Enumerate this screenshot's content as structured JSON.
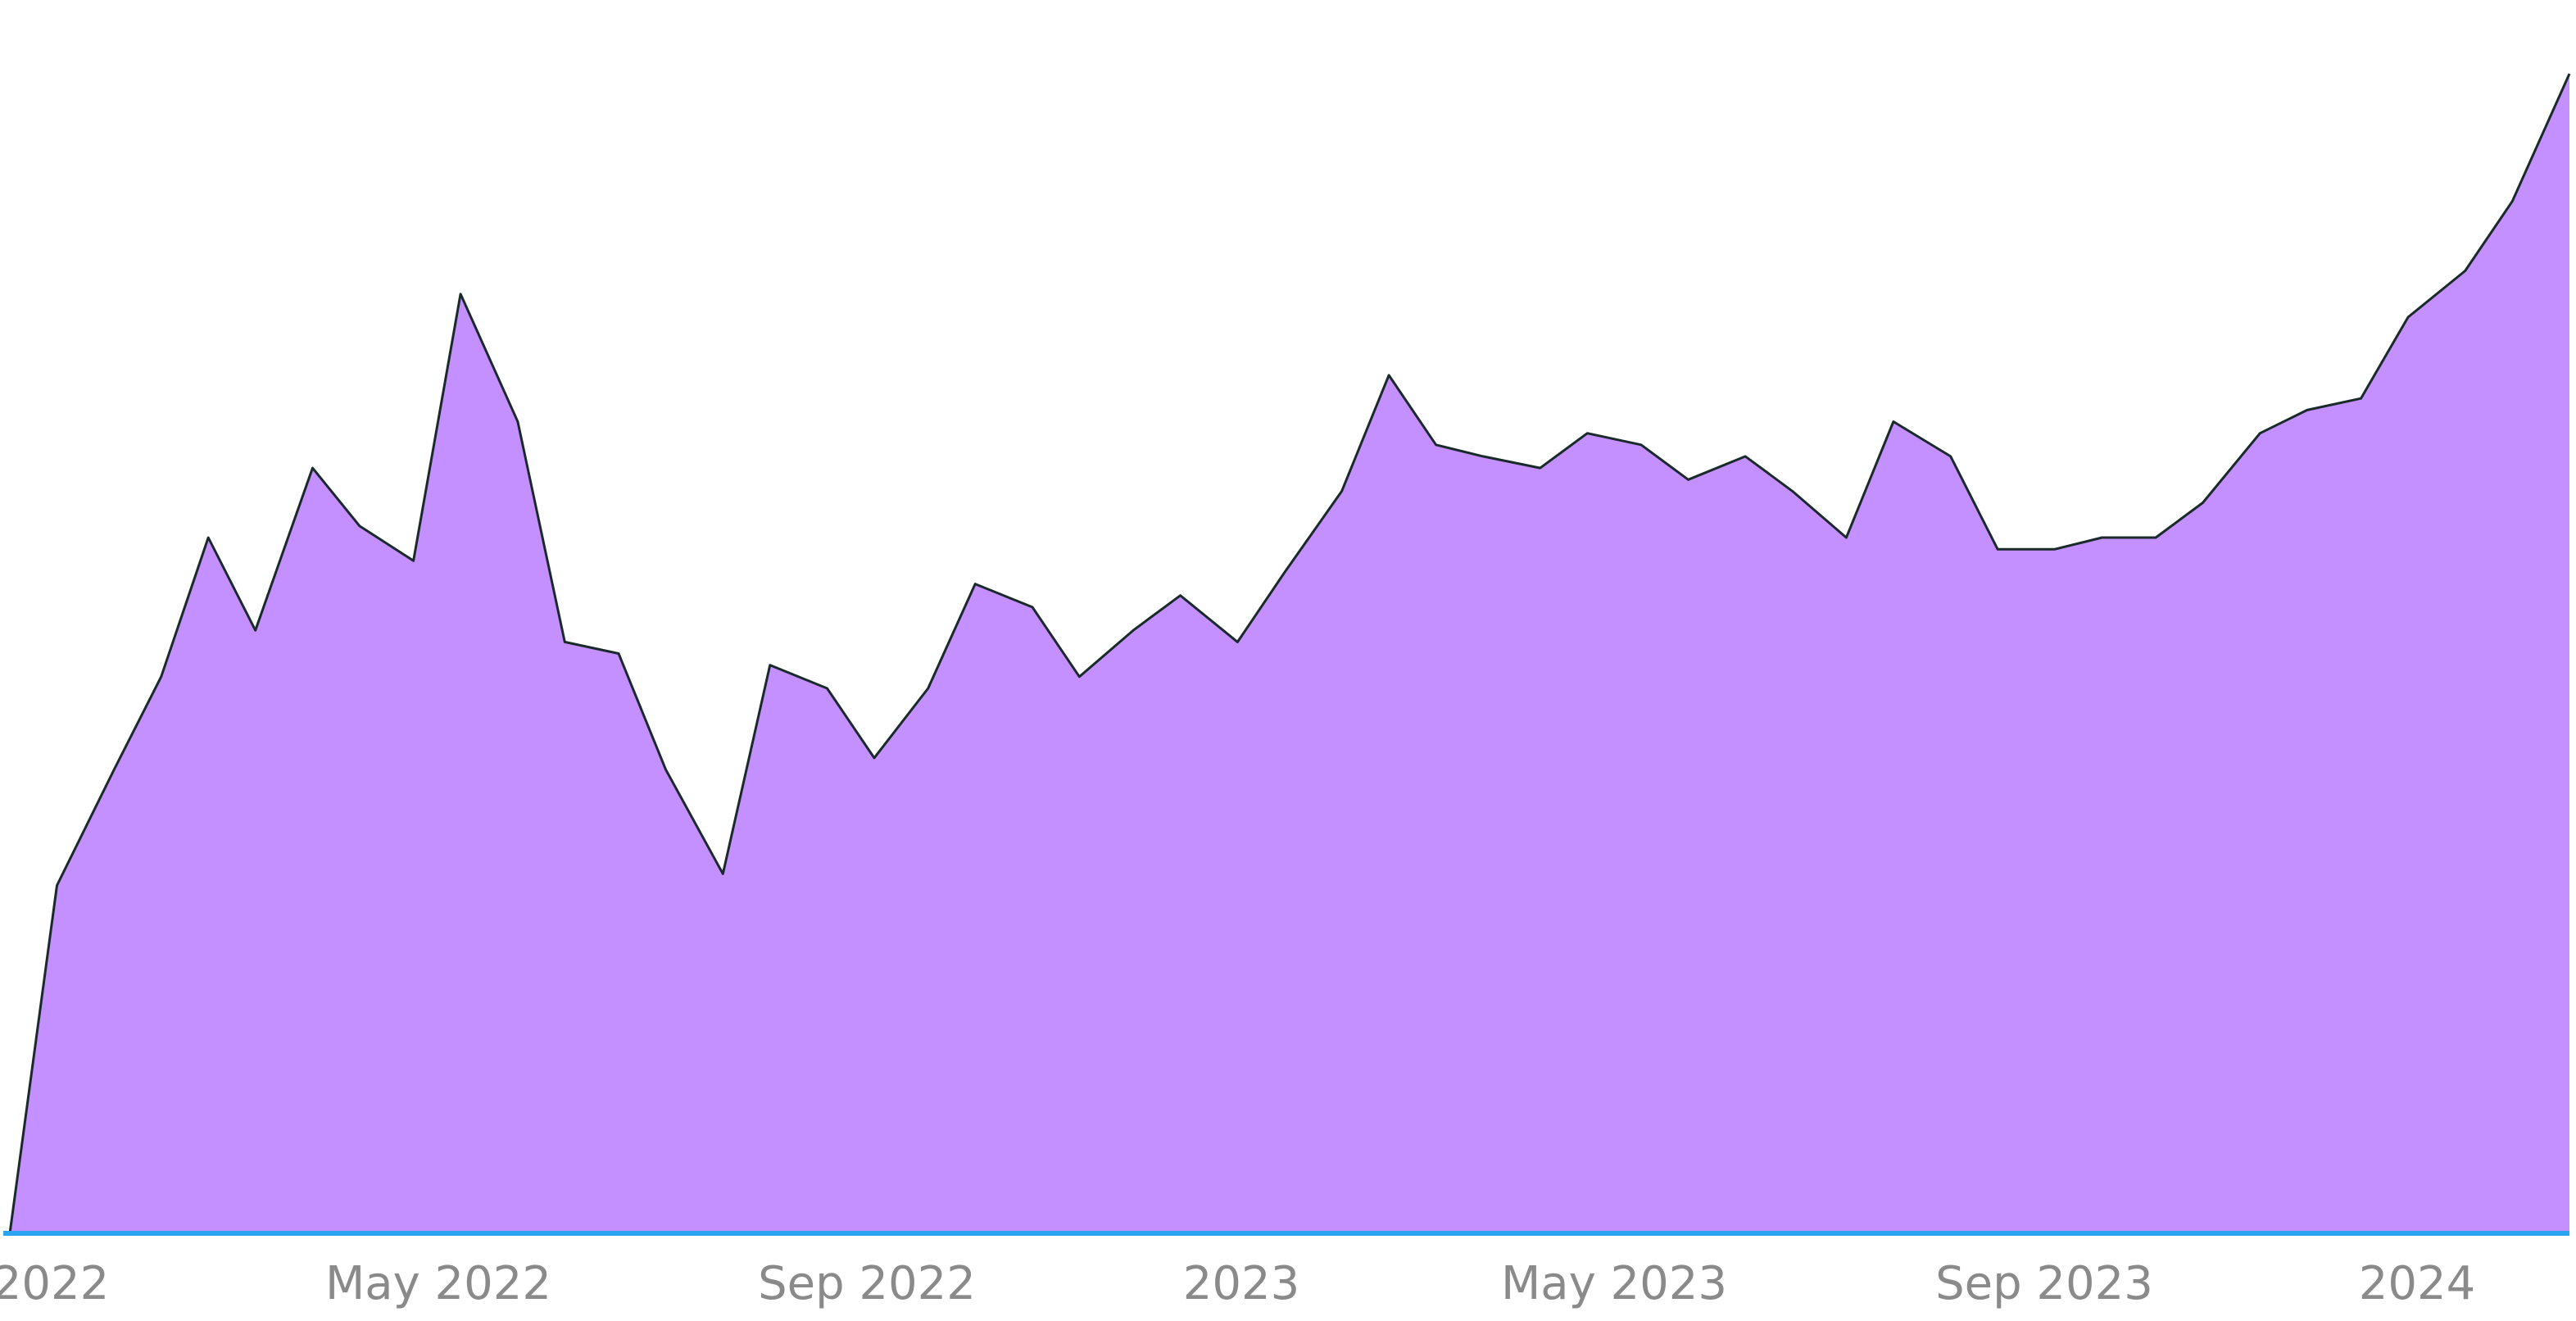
{
  "chart_data": {
    "type": "area",
    "title": "",
    "xlabel": "",
    "ylabel": "",
    "grid": false,
    "legend": "none",
    "x_ticks": [
      "2022",
      "May 2022",
      "Sep 2022",
      "2023",
      "May 2023",
      "Sep 2023",
      "2024"
    ],
    "x": [
      "2022-01-01",
      "2022-01-15",
      "2022-02-01",
      "2022-02-15",
      "2022-03-01",
      "2022-03-15",
      "2022-04-01",
      "2022-04-15",
      "2022-05-01",
      "2022-05-15",
      "2022-06-01",
      "2022-06-15",
      "2022-07-01",
      "2022-07-15",
      "2022-08-01",
      "2022-08-15",
      "2022-09-01",
      "2022-09-15",
      "2022-10-01",
      "2022-10-15",
      "2022-11-01",
      "2022-11-15",
      "2022-12-01",
      "2022-12-15",
      "2023-01-01",
      "2023-01-15",
      "2023-02-01",
      "2023-02-15",
      "2023-03-01",
      "2023-03-15",
      "2023-04-01",
      "2023-04-15",
      "2023-05-01",
      "2023-05-15",
      "2023-06-01",
      "2023-06-15",
      "2023-07-01",
      "2023-07-15",
      "2023-08-01",
      "2023-08-15",
      "2023-09-01",
      "2023-09-15",
      "2023-10-01",
      "2023-10-15",
      "2023-11-01",
      "2023-11-15",
      "2023-12-01",
      "2023-12-15",
      "2024-01-01",
      "2024-01-15",
      "2024-02-01"
    ],
    "series": [
      {
        "color": "#c48fff",
        "line_color": "#1a2a2a",
        "values": [
          0,
          30,
          40,
          48,
          60,
          52,
          66,
          61,
          58,
          81,
          70,
          51,
          50,
          40,
          31,
          49,
          47,
          41,
          47,
          56,
          54,
          48,
          52,
          55,
          51,
          57,
          64,
          74,
          68,
          67,
          66,
          69,
          68,
          65,
          67,
          64,
          60,
          70,
          67,
          59,
          59,
          60,
          60,
          63,
          69,
          71,
          72,
          79,
          83,
          89,
          100
        ]
      }
    ],
    "ylim": [
      0,
      100
    ]
  }
}
